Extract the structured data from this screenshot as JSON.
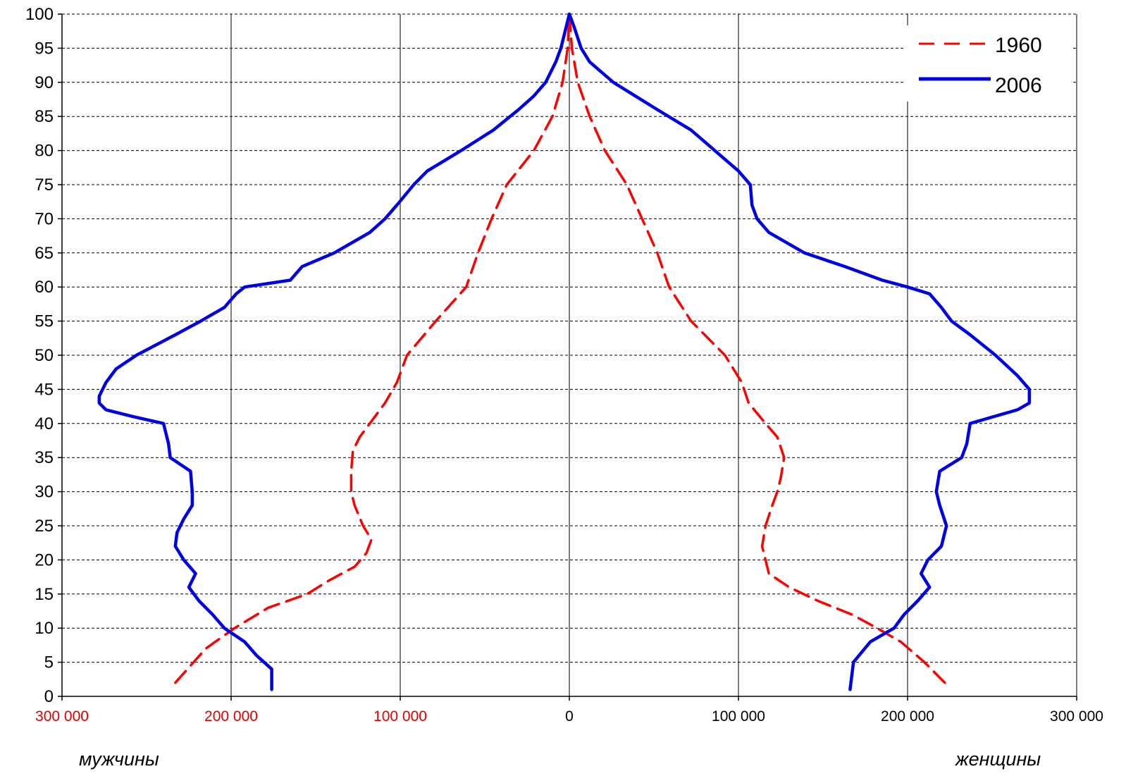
{
  "chart_data": {
    "type": "line",
    "orientation": "population-pyramid",
    "xlim": [
      -300000,
      300000
    ],
    "ylim": [
      0,
      100
    ],
    "grid": true,
    "legend_position": "top-right",
    "x_ticks": [
      {
        "value": -300000,
        "label": "300 000",
        "color": "#e00000"
      },
      {
        "value": -200000,
        "label": "200 000",
        "color": "#e00000"
      },
      {
        "value": -100000,
        "label": "100 000",
        "color": "#e00000"
      },
      {
        "value": 0,
        "label": "0",
        "color": "#000000"
      },
      {
        "value": 100000,
        "label": "100 000",
        "color": "#000000"
      },
      {
        "value": 200000,
        "label": "200 000",
        "color": "#000000"
      },
      {
        "value": 300000,
        "label": "300 000",
        "color": "#000000"
      }
    ],
    "y_ticks": [
      0,
      5,
      10,
      15,
      20,
      25,
      30,
      35,
      40,
      45,
      50,
      55,
      60,
      65,
      70,
      75,
      80,
      85,
      90,
      95,
      100
    ],
    "side_labels": {
      "left": "мужчины",
      "right": "женщины"
    },
    "series": [
      {
        "name": "1960",
        "color": "#ff0000",
        "style": "dashed",
        "male": [
          [
            2,
            -233000
          ],
          [
            7,
            -215000
          ],
          [
            10,
            -198000
          ],
          [
            13,
            -178000
          ],
          [
            15,
            -155000
          ],
          [
            17,
            -142000
          ],
          [
            19,
            -127000
          ],
          [
            21,
            -120000
          ],
          [
            23,
            -117000
          ],
          [
            25,
            -122000
          ],
          [
            28,
            -127000
          ],
          [
            30,
            -129000
          ],
          [
            33,
            -129000
          ],
          [
            36,
            -128000
          ],
          [
            38,
            -124000
          ],
          [
            40,
            -118000
          ],
          [
            43,
            -109000
          ],
          [
            46,
            -102000
          ],
          [
            50,
            -96000
          ],
          [
            55,
            -79000
          ],
          [
            60,
            -61000
          ],
          [
            65,
            -54000
          ],
          [
            70,
            -46000
          ],
          [
            75,
            -37000
          ],
          [
            80,
            -21000
          ],
          [
            85,
            -10000
          ],
          [
            90,
            -4000
          ],
          [
            95,
            -1000
          ],
          [
            100,
            0
          ]
        ],
        "female": [
          [
            2,
            222000
          ],
          [
            5,
            210000
          ],
          [
            8,
            196000
          ],
          [
            10,
            182000
          ],
          [
            12,
            167000
          ],
          [
            14,
            147000
          ],
          [
            16,
            130000
          ],
          [
            18,
            118000
          ],
          [
            20,
            116000
          ],
          [
            22,
            114000
          ],
          [
            25,
            116000
          ],
          [
            28,
            120000
          ],
          [
            30,
            123000
          ],
          [
            32,
            125000
          ],
          [
            35,
            127000
          ],
          [
            38,
            123000
          ],
          [
            40,
            116000
          ],
          [
            43,
            106000
          ],
          [
            46,
            102000
          ],
          [
            50,
            92000
          ],
          [
            55,
            72000
          ],
          [
            60,
            59000
          ],
          [
            65,
            52000
          ],
          [
            70,
            43000
          ],
          [
            75,
            34000
          ],
          [
            80,
            21000
          ],
          [
            85,
            12000
          ],
          [
            90,
            5000
          ],
          [
            95,
            1500
          ],
          [
            100,
            0
          ]
        ]
      },
      {
        "name": "2006",
        "color": "#0000e6",
        "style": "solid",
        "male": [
          [
            1,
            -176000
          ],
          [
            4,
            -176000
          ],
          [
            6,
            -185000
          ],
          [
            8,
            -192000
          ],
          [
            10,
            -204000
          ],
          [
            12,
            -211000
          ],
          [
            14,
            -219000
          ],
          [
            16,
            -225000
          ],
          [
            18,
            -221000
          ],
          [
            20,
            -228000
          ],
          [
            22,
            -233000
          ],
          [
            24,
            -232000
          ],
          [
            26,
            -228000
          ],
          [
            28,
            -223000
          ],
          [
            30,
            -223000
          ],
          [
            33,
            -224000
          ],
          [
            35,
            -236000
          ],
          [
            37,
            -237000
          ],
          [
            39,
            -239000
          ],
          [
            40,
            -240000
          ],
          [
            41,
            -258000
          ],
          [
            42,
            -274000
          ],
          [
            43,
            -278000
          ],
          [
            44,
            -278000
          ],
          [
            46,
            -274000
          ],
          [
            48,
            -268000
          ],
          [
            50,
            -256000
          ],
          [
            53,
            -233000
          ],
          [
            55,
            -218000
          ],
          [
            57,
            -204000
          ],
          [
            59,
            -197000
          ],
          [
            60,
            -192000
          ],
          [
            61,
            -165000
          ],
          [
            63,
            -158000
          ],
          [
            65,
            -139000
          ],
          [
            68,
            -118000
          ],
          [
            70,
            -109000
          ],
          [
            72,
            -102000
          ],
          [
            75,
            -92000
          ],
          [
            77,
            -84000
          ],
          [
            80,
            -64000
          ],
          [
            83,
            -45000
          ],
          [
            86,
            -30000
          ],
          [
            88,
            -21000
          ],
          [
            90,
            -14000
          ],
          [
            93,
            -8000
          ],
          [
            95,
            -5000
          ],
          [
            98,
            -2000
          ],
          [
            100,
            0
          ]
        ],
        "female": [
          [
            1,
            166000
          ],
          [
            5,
            168000
          ],
          [
            8,
            178000
          ],
          [
            10,
            192000
          ],
          [
            12,
            198000
          ],
          [
            14,
            206000
          ],
          [
            16,
            213000
          ],
          [
            18,
            208000
          ],
          [
            20,
            212000
          ],
          [
            22,
            220000
          ],
          [
            25,
            223000
          ],
          [
            28,
            219000
          ],
          [
            30,
            217000
          ],
          [
            33,
            219000
          ],
          [
            35,
            232000
          ],
          [
            37,
            235000
          ],
          [
            40,
            237000
          ],
          [
            42,
            265000
          ],
          [
            43,
            272000
          ],
          [
            45,
            272000
          ],
          [
            47,
            265000
          ],
          [
            50,
            252000
          ],
          [
            53,
            237000
          ],
          [
            55,
            226000
          ],
          [
            57,
            220000
          ],
          [
            59,
            213000
          ],
          [
            60,
            200000
          ],
          [
            61,
            185000
          ],
          [
            63,
            163000
          ],
          [
            65,
            139000
          ],
          [
            68,
            118000
          ],
          [
            70,
            111000
          ],
          [
            72,
            108000
          ],
          [
            75,
            107000
          ],
          [
            77,
            100000
          ],
          [
            80,
            86000
          ],
          [
            83,
            72000
          ],
          [
            86,
            52000
          ],
          [
            88,
            39000
          ],
          [
            90,
            26000
          ],
          [
            93,
            12000
          ],
          [
            95,
            7000
          ],
          [
            98,
            3000
          ],
          [
            100,
            0
          ]
        ]
      }
    ]
  }
}
